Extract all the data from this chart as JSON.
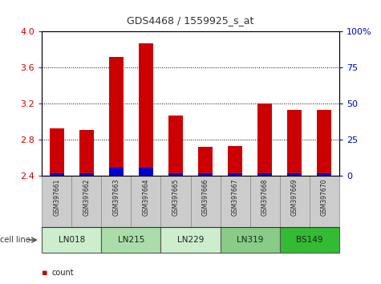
{
  "title": "GDS4468 / 1559925_s_at",
  "samples": [
    "GSM397661",
    "GSM397662",
    "GSM397663",
    "GSM397664",
    "GSM397665",
    "GSM397666",
    "GSM397667",
    "GSM397668",
    "GSM397669",
    "GSM397670"
  ],
  "count_values": [
    2.93,
    2.91,
    3.72,
    3.87,
    3.07,
    2.72,
    2.73,
    3.2,
    3.13,
    3.13
  ],
  "percentile_values": [
    2,
    2,
    6,
    6,
    2,
    2,
    2,
    2,
    2,
    2
  ],
  "ylim_left": [
    2.4,
    4.0
  ],
  "ylim_right": [
    0,
    100
  ],
  "yticks_left": [
    2.4,
    2.8,
    3.2,
    3.6,
    4.0
  ],
  "yticks_right": [
    0,
    25,
    50,
    75,
    100
  ],
  "cell_lines": [
    {
      "name": "LN018",
      "start": 0,
      "end": 1,
      "color": "#cceecc"
    },
    {
      "name": "LN215",
      "start": 2,
      "end": 3,
      "color": "#aaddaa"
    },
    {
      "name": "LN229",
      "start": 4,
      "end": 5,
      "color": "#cceecc"
    },
    {
      "name": "LN319",
      "start": 6,
      "end": 7,
      "color": "#88cc88"
    },
    {
      "name": "BS149",
      "start": 8,
      "end": 9,
      "color": "#33bb33"
    }
  ],
  "bar_color_count": "#cc0000",
  "bar_color_pct": "#0000cc",
  "bar_width": 0.5,
  "bg_color": "#ffffff",
  "tick_label_color_left": "#cc0000",
  "tick_label_color_right": "#0000bb",
  "grid_color": "#000000",
  "sample_bg_color": "#cccccc"
}
